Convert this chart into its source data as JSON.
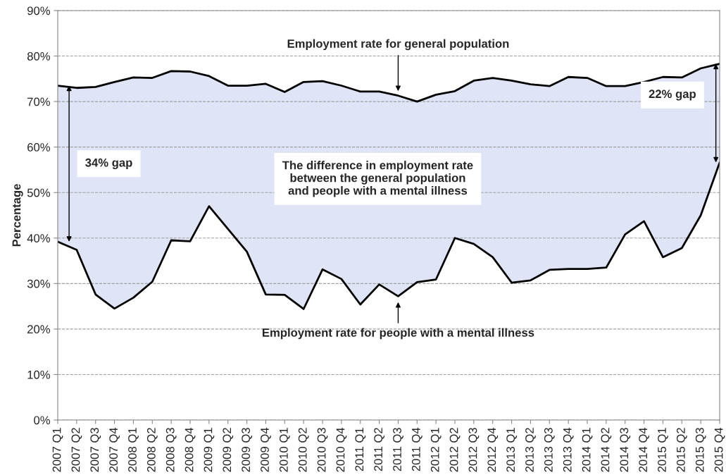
{
  "chart_data": {
    "type": "line",
    "ylabel": "Percentage",
    "categories": [
      "2007 Q1",
      "2007 Q2",
      "2007 Q3",
      "2007 Q4",
      "2008 Q1",
      "2008 Q2",
      "2008 Q3",
      "2008 Q4",
      "2009 Q1",
      "2009 Q2",
      "2009 Q3",
      "2009 Q4",
      "2010 Q1",
      "2010 Q2",
      "2010 Q3",
      "2010 Q4",
      "2011 Q1",
      "2011 Q2",
      "2011 Q3",
      "2011 Q4",
      "2012 Q1",
      "2012 Q2",
      "2012 Q3",
      "2012 Q4",
      "2013 Q1",
      "2013 Q2",
      "2013 Q3",
      "2013 Q4",
      "2014 Q1",
      "2014 Q2",
      "2014 Q3",
      "2014 Q4",
      "2015 Q1",
      "2015 Q2",
      "2015 Q3",
      "2015 Q4"
    ],
    "series": [
      {
        "color": "#000000",
        "values": [
          73.5,
          73.0,
          73.2,
          74.3,
          75.3,
          75.2,
          76.7,
          76.6,
          75.6,
          73.5,
          73.5,
          73.9,
          72.1,
          74.3,
          74.5,
          73.5,
          72.2,
          72.2,
          71.3,
          70.0,
          71.5,
          72.3,
          74.6,
          75.2,
          74.6,
          73.8,
          73.4,
          75.4,
          75.2,
          73.4,
          73.4,
          74.3,
          75.4,
          75.3,
          77.3,
          78.3
        ]
      },
      {
        "color": "#000000",
        "values": [
          39.2,
          37.4,
          27.6,
          24.5,
          26.9,
          30.4,
          39.5,
          39.3,
          47.0,
          42.0,
          37.0,
          27.6,
          27.5,
          24.4,
          33.1,
          31.0,
          25.4,
          29.8,
          27.2,
          30.3,
          30.9,
          40.0,
          38.7,
          35.8,
          30.2,
          30.7,
          33.0,
          33.2,
          33.2,
          33.5,
          40.8,
          43.7,
          35.8,
          37.8,
          45.0,
          56.6
        ]
      }
    ],
    "ylim": [
      0,
      90
    ],
    "yticks": [
      {
        "value": 0,
        "label": "0%"
      },
      {
        "value": 10,
        "label": "10%"
      },
      {
        "value": 20,
        "label": "20%"
      },
      {
        "value": 30,
        "label": "30%"
      },
      {
        "value": 40,
        "label": "40%"
      },
      {
        "value": 50,
        "label": "50%"
      },
      {
        "value": 60,
        "label": "60%"
      },
      {
        "value": 70,
        "label": "70%"
      },
      {
        "value": 80,
        "label": "80%"
      },
      {
        "value": 90,
        "label": "90%"
      }
    ],
    "grid": "y",
    "annotations": [
      {
        "text": "Employment rate for general population",
        "x": "2011 Q3",
        "y": 71.3
      },
      {
        "text": "Employment rate for people with a mental illness",
        "x": "2011 Q3",
        "y": 27.2
      },
      "34% gap",
      "22% gap",
      "The difference in employment rate\nbetween the general population\nand people with a mental illness"
    ]
  }
}
